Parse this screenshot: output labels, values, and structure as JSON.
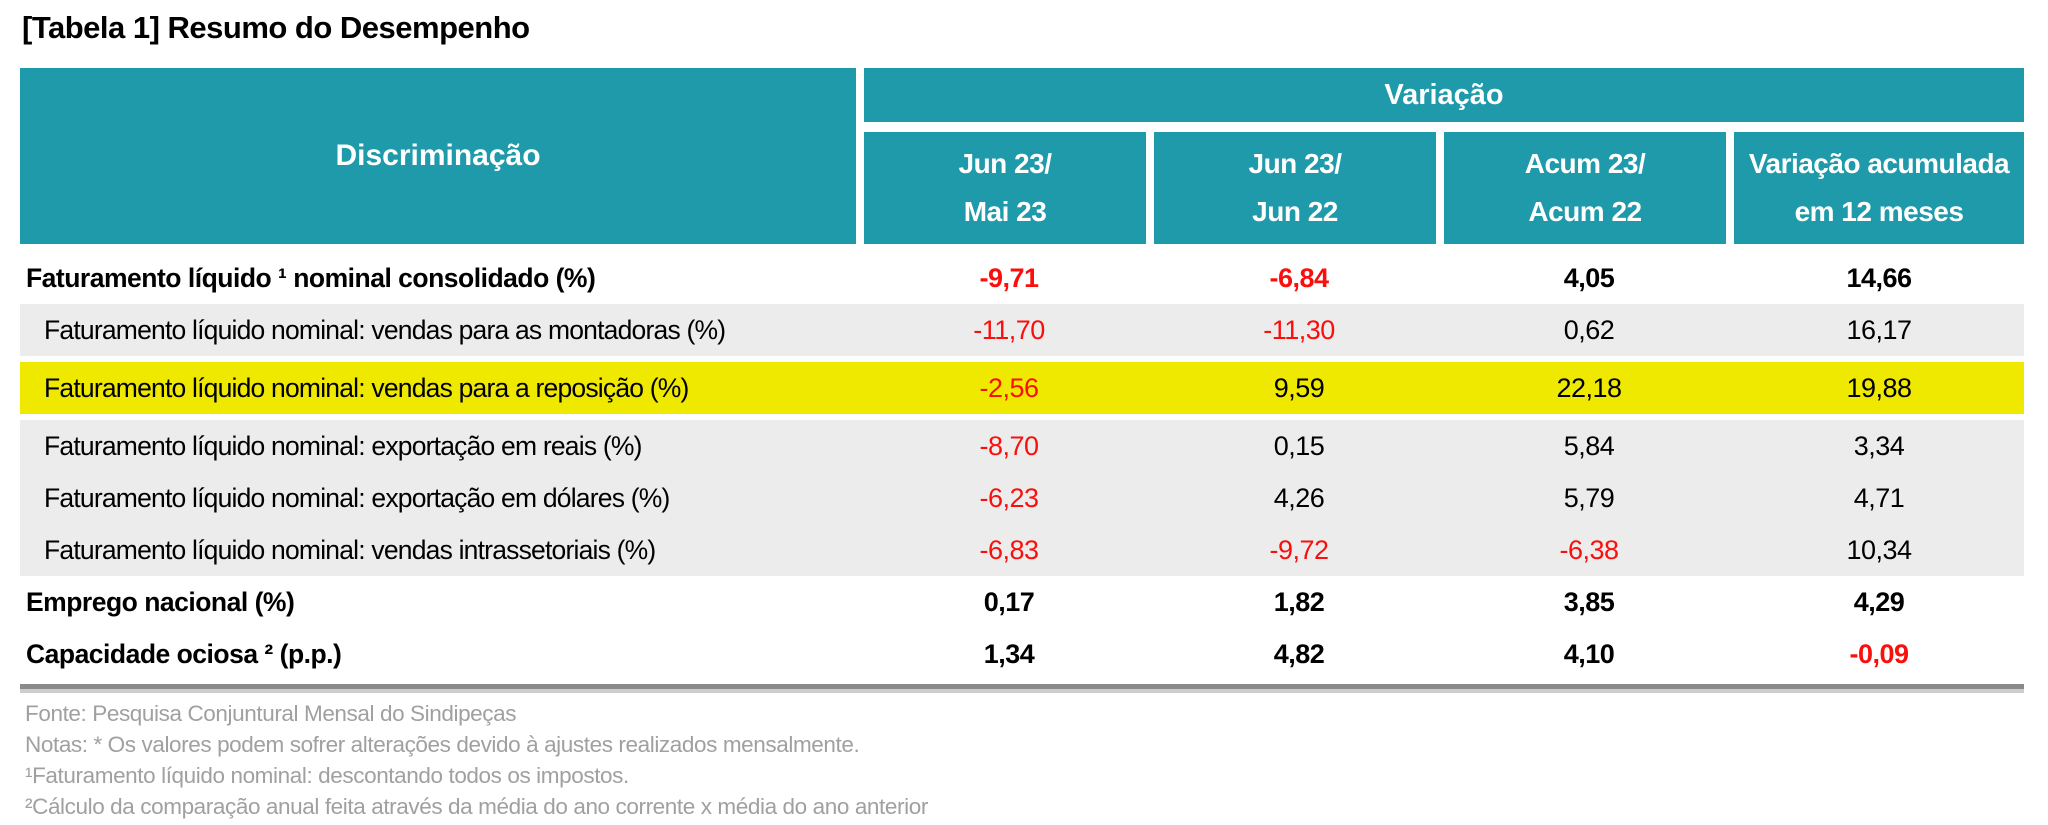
{
  "title": "[Tabela 1] Resumo do Desempenho",
  "colors": {
    "header_teal": "#1E9AAA",
    "row_gray": "#ECECEC",
    "highlight_yellow": "#EFE900",
    "negative_red": "#FA0F0C",
    "note_gray": "#A0A0A0"
  },
  "table": {
    "row_header": "Discriminação",
    "group_header": "Variação",
    "columns": [
      {
        "line1": "Jun 23/",
        "line2": "Mai 23"
      },
      {
        "line1": "Jun 23/",
        "line2": "Jun 22"
      },
      {
        "line1": "Acum 23/",
        "line2": "Acum 22"
      },
      {
        "line1": "Variação acumulada",
        "line2": "em 12 meses"
      }
    ],
    "rows": [
      {
        "label": "Faturamento líquido ¹ nominal consolidado (%)",
        "emphasis": true,
        "bg": "white",
        "gap_after": false,
        "values": [
          {
            "text": "-9,71",
            "negative": true
          },
          {
            "text": "-6,84",
            "negative": true
          },
          {
            "text": "4,05",
            "negative": false
          },
          {
            "text": "14,66",
            "negative": false
          }
        ]
      },
      {
        "label": "Faturamento líquido nominal: vendas para as montadoras (%)",
        "emphasis": false,
        "bg": "gray",
        "gap_after": true,
        "values": [
          {
            "text": "-11,70",
            "negative": true
          },
          {
            "text": "-11,30",
            "negative": true
          },
          {
            "text": "0,62",
            "negative": false
          },
          {
            "text": "16,17",
            "negative": false
          }
        ]
      },
      {
        "label": "Faturamento líquido nominal: vendas para a reposição (%)",
        "emphasis": false,
        "bg": "yellow",
        "gap_after": true,
        "values": [
          {
            "text": "-2,56",
            "negative": true
          },
          {
            "text": "9,59",
            "negative": false
          },
          {
            "text": "22,18",
            "negative": false
          },
          {
            "text": "19,88",
            "negative": false
          }
        ]
      },
      {
        "label": "Faturamento líquido nominal: exportação em reais (%)",
        "emphasis": false,
        "bg": "gray",
        "gap_after": false,
        "values": [
          {
            "text": "-8,70",
            "negative": true
          },
          {
            "text": "0,15",
            "negative": false
          },
          {
            "text": "5,84",
            "negative": false
          },
          {
            "text": "3,34",
            "negative": false
          }
        ]
      },
      {
        "label": "Faturamento líquido nominal: exportação em dólares (%)",
        "emphasis": false,
        "bg": "gray",
        "gap_after": false,
        "values": [
          {
            "text": "-6,23",
            "negative": true
          },
          {
            "text": "4,26",
            "negative": false
          },
          {
            "text": "5,79",
            "negative": false
          },
          {
            "text": "4,71",
            "negative": false
          }
        ]
      },
      {
        "label": "Faturamento líquido nominal: vendas intrassetoriais (%)",
        "emphasis": false,
        "bg": "gray",
        "gap_after": false,
        "values": [
          {
            "text": "-6,83",
            "negative": true
          },
          {
            "text": "-9,72",
            "negative": true
          },
          {
            "text": "-6,38",
            "negative": true
          },
          {
            "text": "10,34",
            "negative": false
          }
        ]
      },
      {
        "label": "Emprego nacional (%)",
        "emphasis": true,
        "bg": "white",
        "gap_after": false,
        "values": [
          {
            "text": "0,17",
            "negative": false
          },
          {
            "text": "1,82",
            "negative": false
          },
          {
            "text": "3,85",
            "negative": false
          },
          {
            "text": "4,29",
            "negative": false
          }
        ]
      },
      {
        "label": "Capacidade ociosa ² (p.p.)",
        "emphasis": true,
        "bg": "white",
        "gap_after": false,
        "values": [
          {
            "text": "1,34",
            "negative": false
          },
          {
            "text": "4,82",
            "negative": false
          },
          {
            "text": "4,10",
            "negative": false
          },
          {
            "text": "-0,09",
            "negative": true
          }
        ]
      }
    ]
  },
  "footer": {
    "lines": [
      "Fonte: Pesquisa Conjuntural Mensal do Sindipeças",
      "Notas: * Os valores podem sofrer alterações devido à ajustes realizados mensalmente.",
      "¹Faturamento líquido nominal: descontando todos os impostos.",
      "²Cálculo da comparação anual feita através da média do ano corrente x média do ano anterior"
    ]
  }
}
